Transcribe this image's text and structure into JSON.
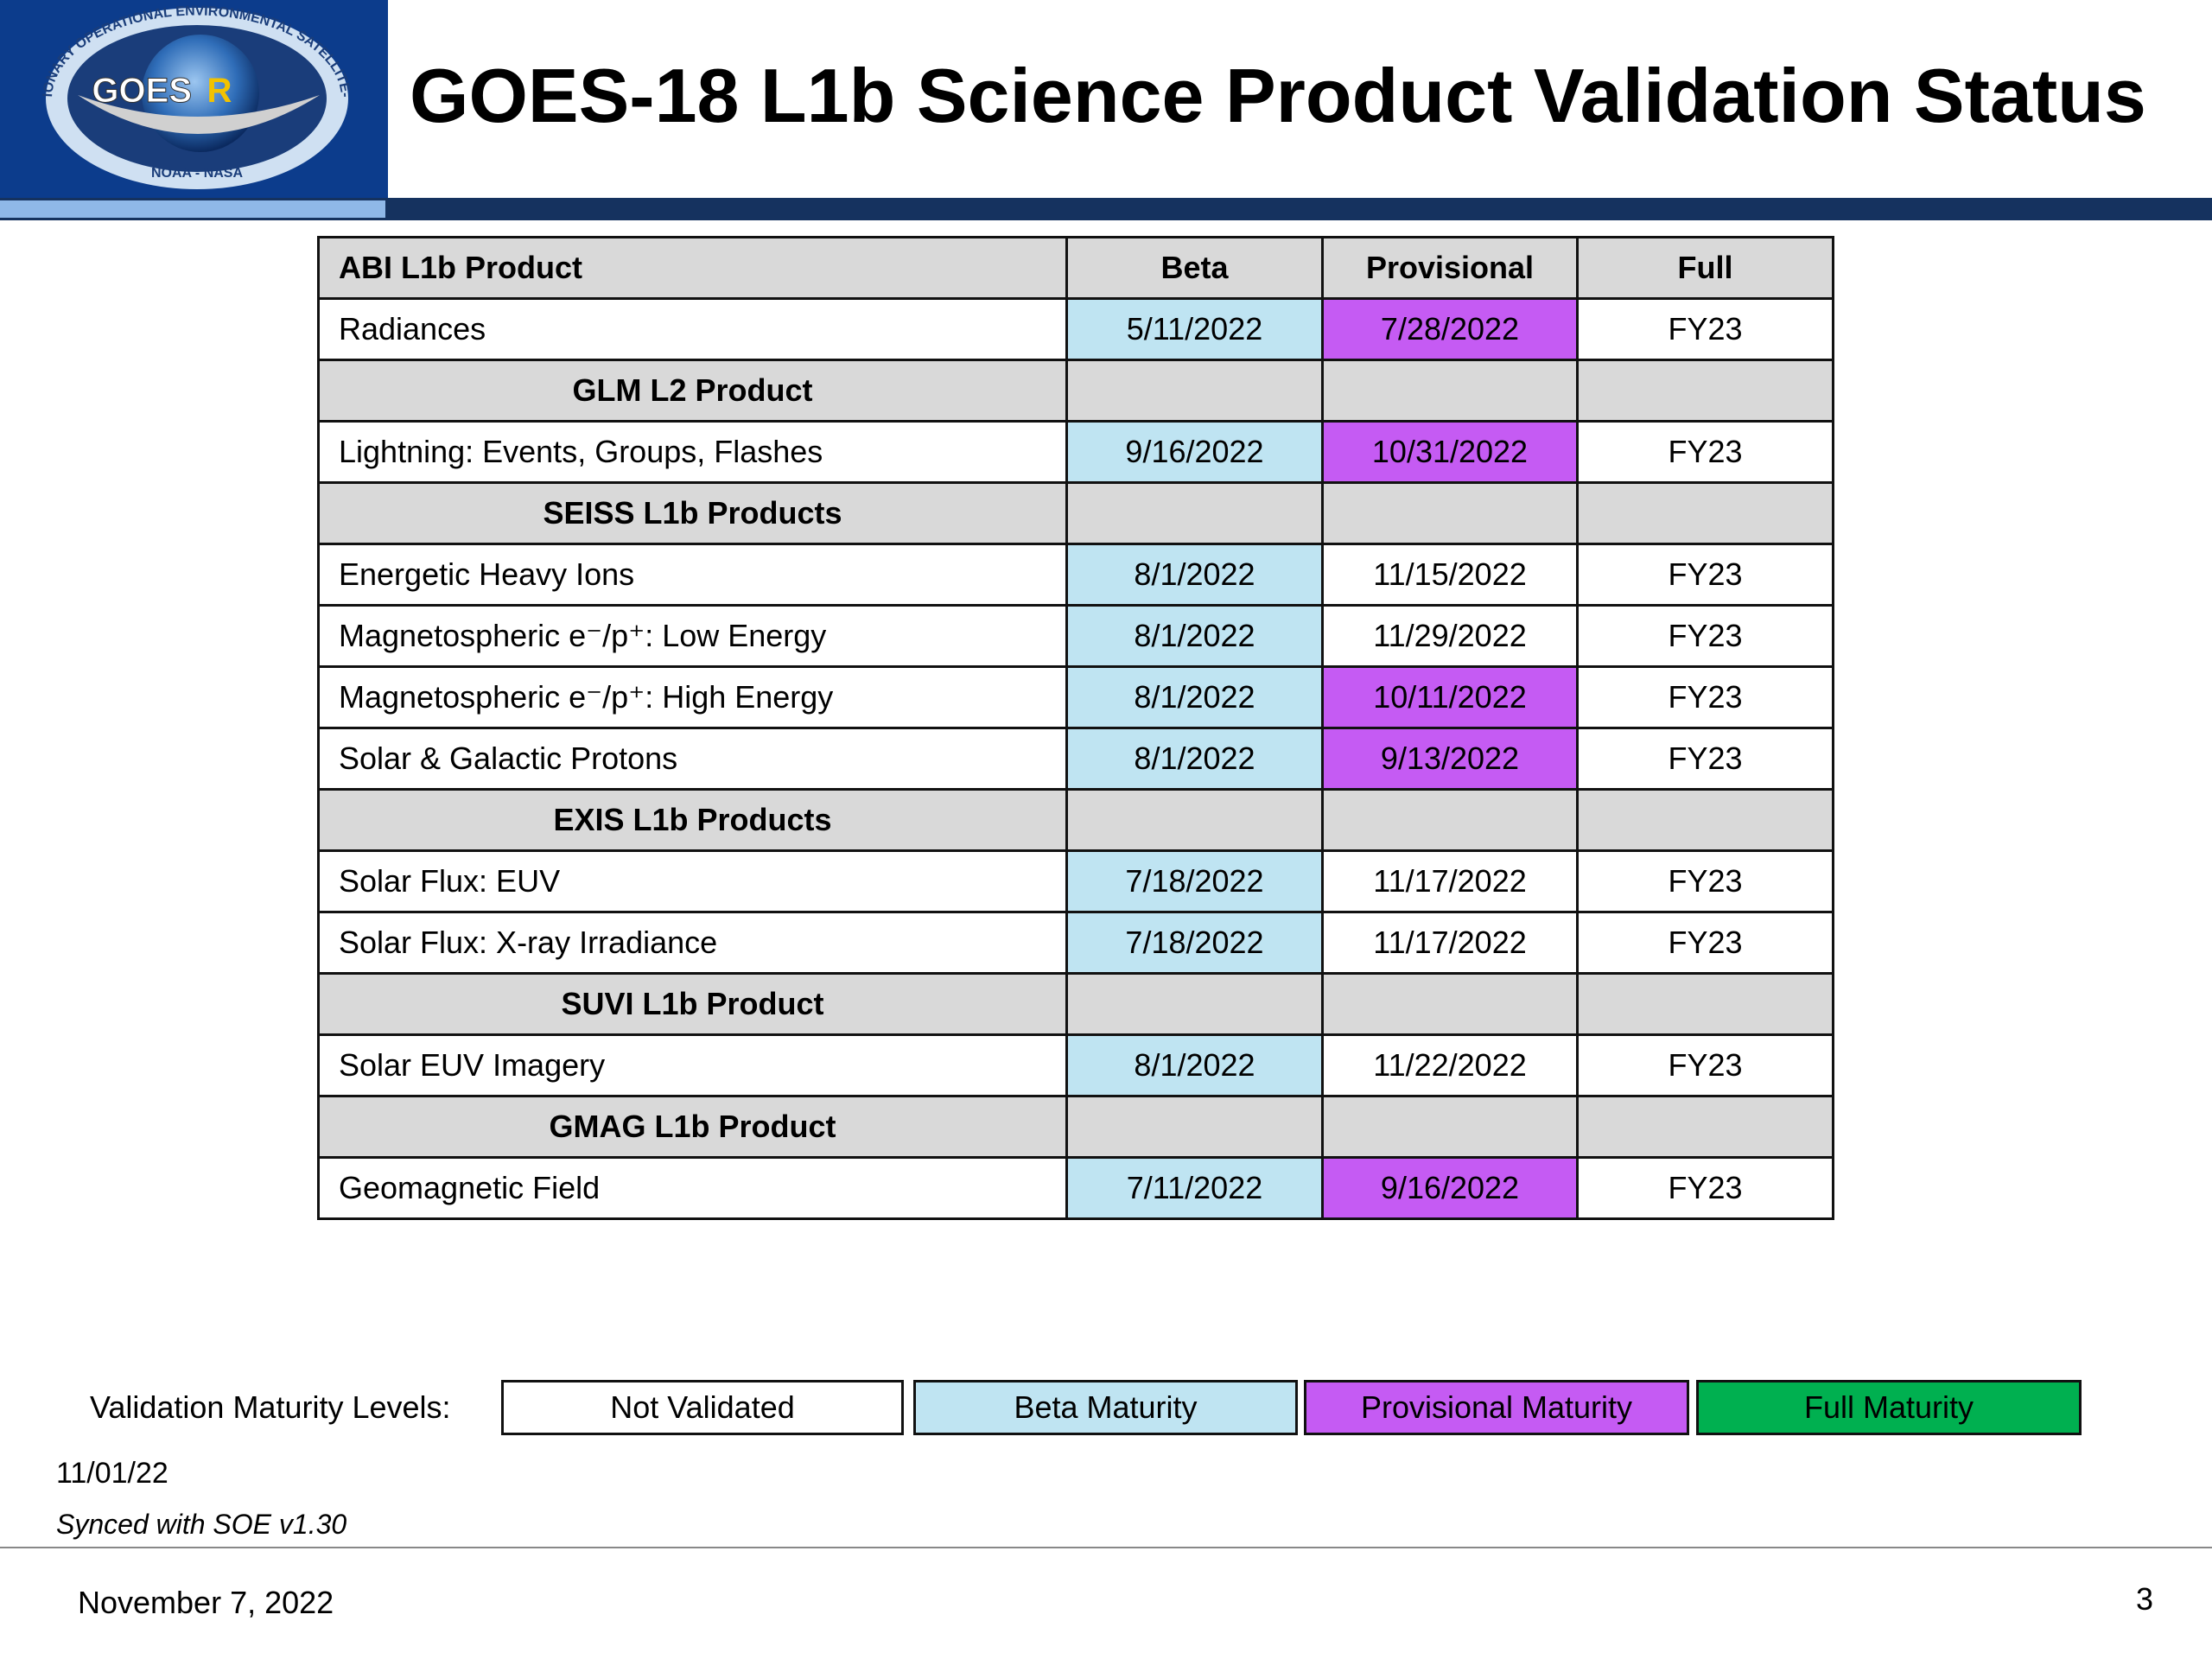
{
  "header": {
    "title": "GOES-18 L1b Science Product Validation Status",
    "logo": {
      "ring": "GEOSTATIONARY OPERATIONAL ENVIRONMENTAL SATELLITE-R SERIES",
      "name": "GOES",
      "letter": "R",
      "agencies": "NOAA - NASA"
    }
  },
  "table": {
    "rows": [
      {
        "header": true,
        "cells": [
          "ABI L1b Product",
          "Beta",
          "Provisional",
          "Full"
        ]
      },
      {
        "cells": [
          "Radiances",
          "5/11/2022",
          "7/28/2022",
          "FY23"
        ],
        "fills": [
          "#ffffff",
          "#bfe4f2",
          "#c55bf3",
          "#ffffff"
        ]
      },
      {
        "header": true,
        "cells": [
          "GLM L2 Product"
        ]
      },
      {
        "cells": [
          "Lightning: Events, Groups, Flashes",
          "9/16/2022",
          "10/31/2022",
          "FY23"
        ],
        "fills": [
          "#ffffff",
          "#bfe4f2",
          "#c55bf3",
          "#ffffff"
        ]
      },
      {
        "header": true,
        "cells": [
          "SEISS L1b Products"
        ]
      },
      {
        "cells": [
          "Energetic Heavy Ions",
          "8/1/2022",
          "11/15/2022",
          "FY23"
        ],
        "fills": [
          "#ffffff",
          "#bfe4f2",
          "#ffffff",
          "#ffffff"
        ]
      },
      {
        "cells": [
          "Magnetospheric e⁻/p⁺: Low Energy",
          "8/1/2022",
          "11/29/2022",
          "FY23"
        ],
        "fills": [
          "#ffffff",
          "#bfe4f2",
          "#ffffff",
          "#ffffff"
        ]
      },
      {
        "cells": [
          "Magnetospheric e⁻/p⁺: High Energy",
          "8/1/2022",
          "10/11/2022",
          "FY23"
        ],
        "fills": [
          "#ffffff",
          "#bfe4f2",
          "#c55bf3",
          "#ffffff"
        ]
      },
      {
        "cells": [
          "Solar & Galactic Protons",
          "8/1/2022",
          "9/13/2022",
          "FY23"
        ],
        "fills": [
          "#ffffff",
          "#bfe4f2",
          "#c55bf3",
          "#ffffff"
        ]
      },
      {
        "header": true,
        "cells": [
          "EXIS L1b Products"
        ]
      },
      {
        "cells": [
          "Solar Flux: EUV",
          "7/18/2022",
          "11/17/2022",
          "FY23"
        ],
        "fills": [
          "#ffffff",
          "#bfe4f2",
          "#ffffff",
          "#ffffff"
        ]
      },
      {
        "cells": [
          "Solar Flux: X-ray Irradiance",
          "7/18/2022",
          "11/17/2022",
          "FY23"
        ],
        "fills": [
          "#ffffff",
          "#bfe4f2",
          "#ffffff",
          "#ffffff"
        ]
      },
      {
        "header": true,
        "cells": [
          "SUVI L1b Product"
        ]
      },
      {
        "cells": [
          "Solar EUV Imagery",
          "8/1/2022",
          "11/22/2022",
          "FY23"
        ],
        "fills": [
          "#ffffff",
          "#bfe4f2",
          "#ffffff",
          "#ffffff"
        ]
      },
      {
        "header": true,
        "cells": [
          "GMAG L1b Product"
        ]
      },
      {
        "cells": [
          "Geomagnetic Field",
          "7/11/2022",
          "9/16/2022",
          "FY23"
        ],
        "fills": [
          "#ffffff",
          "#bfe4f2",
          "#c55bf3",
          "#ffffff"
        ]
      }
    ]
  },
  "legend": {
    "label": "Validation Maturity Levels:",
    "items": [
      {
        "name": "Not Validated",
        "color": "#ffffff"
      },
      {
        "name": "Beta Maturity",
        "color": "#bfe4f2"
      },
      {
        "name": "Provisional Maturity",
        "color": "#c55bf3"
      },
      {
        "name": "Full Maturity",
        "color": "#00b050"
      }
    ]
  },
  "notes": {
    "date": "11/01/22",
    "sync": "Synced with SOE v1.30"
  },
  "footer": {
    "date": "November 7, 2022",
    "page": "3"
  }
}
